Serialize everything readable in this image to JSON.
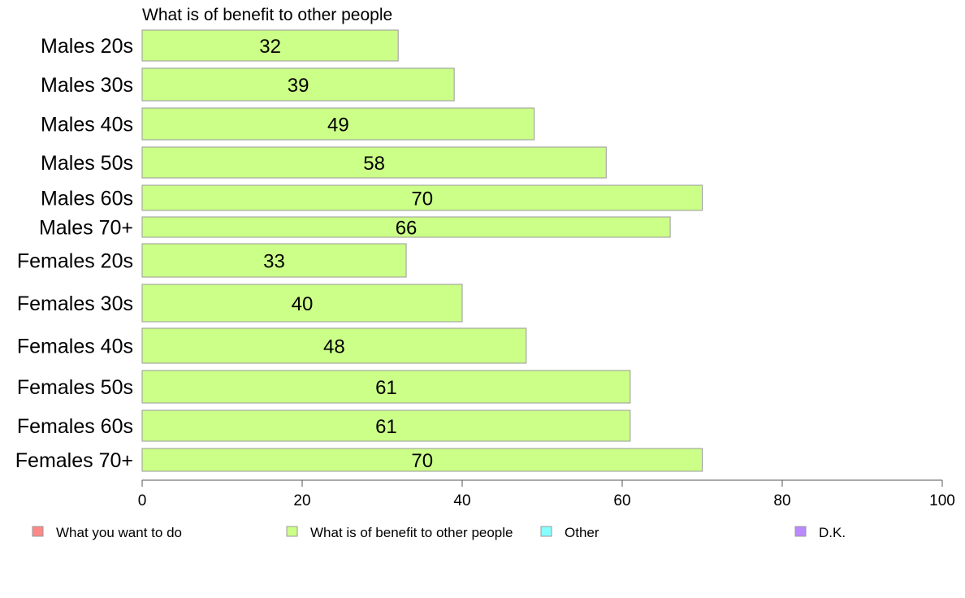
{
  "chart_data": {
    "type": "bar",
    "orientation": "horizontal",
    "title": "What is of benefit to other people",
    "categories": [
      "Males 20s",
      "Males 30s",
      "Males 40s",
      "Males 50s",
      "Males 60s",
      "Males 70+",
      "Females 20s",
      "Females 30s",
      "Females 40s",
      "Females 50s",
      "Females 60s",
      "Females 70+"
    ],
    "values": [
      32,
      39,
      49,
      58,
      70,
      66,
      33,
      40,
      48,
      61,
      61,
      70
    ],
    "value_labels": [
      "32",
      "39",
      "49",
      "58",
      "70",
      "66",
      "33",
      "40",
      "48",
      "61",
      "61",
      "70"
    ],
    "xlim": [
      0,
      100
    ],
    "xticks": [
      0,
      20,
      40,
      60,
      80,
      100
    ],
    "xtick_labels": [
      "0",
      "20",
      "40",
      "60",
      "80",
      "100"
    ],
    "bar_color": "#ccff88",
    "bar_edge_color": "#999999",
    "grid": false,
    "legend_position": "bottom",
    "legend": [
      {
        "label": "What you want to do",
        "color": "#ff8888"
      },
      {
        "label": "What is of benefit to other people",
        "color": "#ccff88"
      },
      {
        "label": "Other",
        "color": "#88ffff"
      },
      {
        "label": "D.K.",
        "color": "#bb88ff"
      }
    ]
  }
}
